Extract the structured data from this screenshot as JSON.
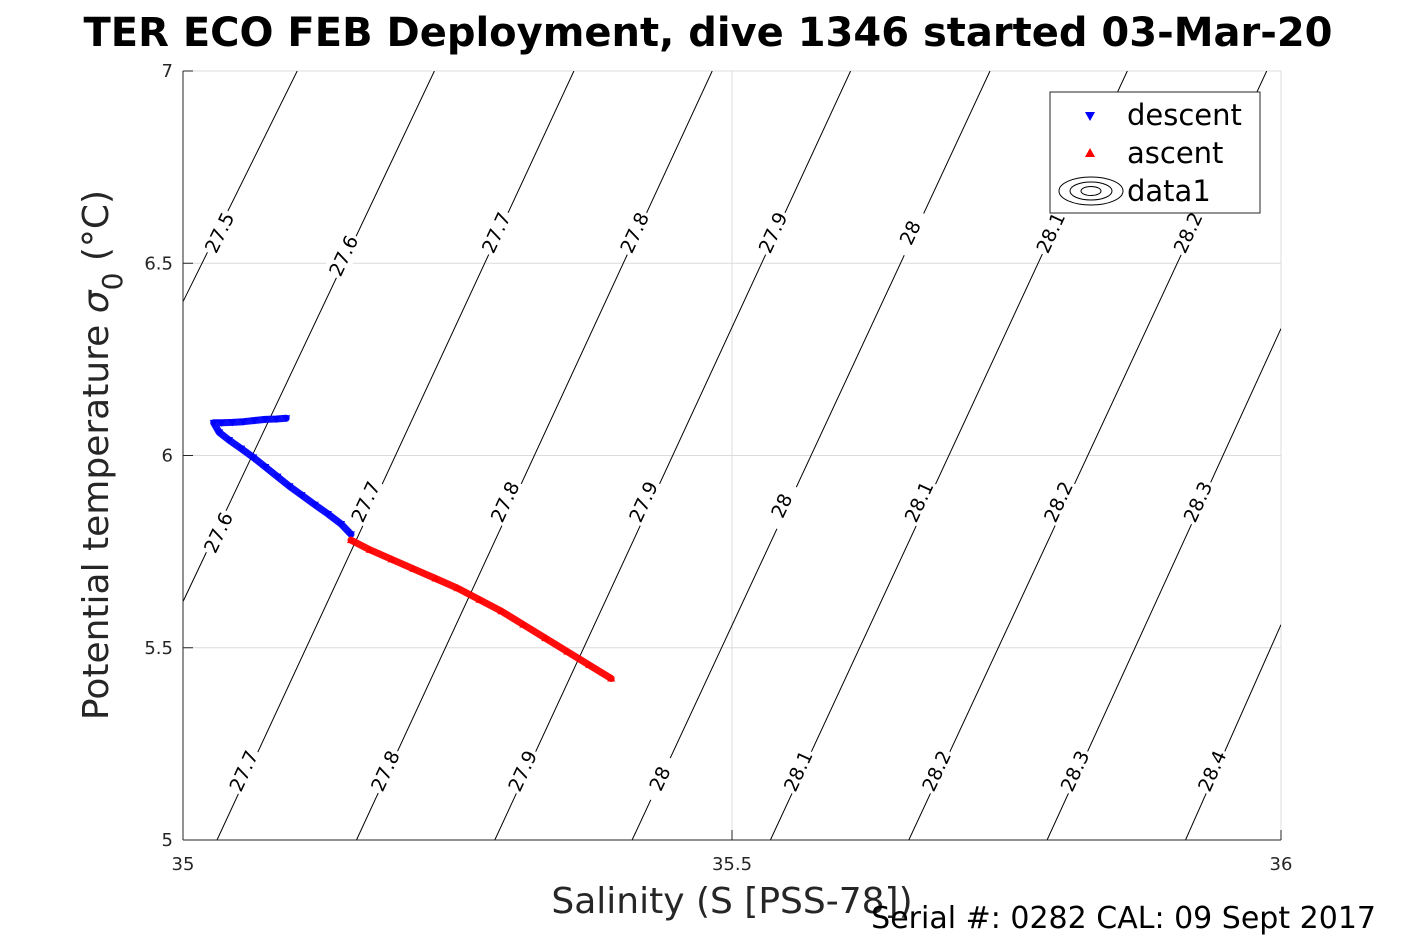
{
  "chart_data": {
    "type": "scatter",
    "title": "TER ECO FEB Deployment, dive 1346 started 03-Mar-20",
    "xlabel": "Salinity (S [PSS-78])",
    "ylabel_main": "Potential temperature ",
    "ylabel_sigma": "σ",
    "ylabel_sub": "0",
    "ylabel_unit": " (°C)",
    "xlim": [
      35,
      36
    ],
    "ylim": [
      5,
      7
    ],
    "xticks": [
      35,
      35.5,
      36
    ],
    "xtick_labels": [
      "35",
      "35.5",
      "36"
    ],
    "yticks": [
      5,
      5.5,
      6,
      6.5,
      7
    ],
    "ytick_labels": [
      "5",
      "5.5",
      "6",
      "6.5",
      "7"
    ],
    "grid": true,
    "legend_position": "top-right",
    "legend": [
      {
        "label": "descent",
        "marker": "triangle-down",
        "color": "#0000ff"
      },
      {
        "label": "ascent",
        "marker": "triangle-up",
        "color": "#ff0000"
      },
      {
        "label": "data1",
        "marker": "contour",
        "color": "#000000"
      }
    ],
    "density_contours": [
      {
        "value": "27.5",
        "lines": [
          [
            [
              35.0,
              6.4
            ],
            [
              35.104,
              7.0
            ]
          ]
        ],
        "labels": [
          {
            "text": "27.5",
            "x": 35.033,
            "y": 6.58
          }
        ]
      },
      {
        "value": "27.6",
        "lines": [
          [
            [
              35.0,
              5.62
            ],
            [
              35.229,
              7.0
            ]
          ]
        ],
        "labels": [
          {
            "text": "27.6",
            "x": 35.032,
            "y": 5.8
          },
          {
            "text": "27.6",
            "x": 35.146,
            "y": 6.52
          }
        ]
      },
      {
        "value": "27.7",
        "lines": [
          [
            [
              35.031,
              5.0
            ],
            [
              35.356,
              7.0
            ]
          ]
        ],
        "labels": [
          {
            "text": "27.7",
            "x": 35.055,
            "y": 5.18
          },
          {
            "text": "27.7",
            "x": 35.166,
            "y": 5.88
          },
          {
            "text": "27.7",
            "x": 35.285,
            "y": 6.58
          }
        ]
      },
      {
        "value": "27.8",
        "lines": [
          [
            [
              35.158,
              5.0
            ],
            [
              35.482,
              7.0
            ]
          ]
        ],
        "labels": [
          {
            "text": "27.8",
            "x": 35.184,
            "y": 5.18
          },
          {
            "text": "27.8",
            "x": 35.293,
            "y": 5.88
          },
          {
            "text": "27.8",
            "x": 35.411,
            "y": 6.58
          }
        ]
      },
      {
        "value": "27.9",
        "lines": [
          [
            [
              35.284,
              5.0
            ],
            [
              35.608,
              7.0
            ]
          ]
        ],
        "labels": [
          {
            "text": "27.9",
            "x": 35.309,
            "y": 5.18
          },
          {
            "text": "27.9",
            "x": 35.419,
            "y": 5.88
          },
          {
            "text": "27.9",
            "x": 35.537,
            "y": 6.58
          }
        ]
      },
      {
        "value": "28",
        "lines": [
          [
            [
              35.409,
              5.0
            ],
            [
              35.735,
              7.0
            ]
          ]
        ],
        "labels": [
          {
            "text": "28",
            "x": 35.434,
            "y": 5.16
          },
          {
            "text": "28",
            "x": 35.545,
            "y": 5.87
          },
          {
            "text": "28",
            "x": 35.662,
            "y": 6.58
          }
        ]
      },
      {
        "value": "28.1",
        "lines": [
          [
            [
              35.535,
              5.0
            ],
            [
              35.86,
              7.0
            ]
          ]
        ],
        "labels": [
          {
            "text": "28.1",
            "x": 35.56,
            "y": 5.18
          },
          {
            "text": "28.1",
            "x": 35.67,
            "y": 5.88
          },
          {
            "text": "28.1",
            "x": 35.79,
            "y": 6.58
          }
        ]
      },
      {
        "value": "28.2",
        "lines": [
          [
            [
              35.661,
              5.0
            ],
            [
              35.987,
              7.0
            ]
          ]
        ],
        "labels": [
          {
            "text": "28.2",
            "x": 35.686,
            "y": 5.18
          },
          {
            "text": "28.2",
            "x": 35.797,
            "y": 5.88
          },
          {
            "text": "28.2",
            "x": 35.915,
            "y": 6.58
          }
        ]
      },
      {
        "value": "28.3",
        "lines": [
          [
            [
              35.787,
              5.0
            ],
            [
              36.0,
              6.33
            ]
          ]
        ],
        "labels": [
          {
            "text": "28.3",
            "x": 35.812,
            "y": 5.18
          },
          {
            "text": "28.3",
            "x": 35.924,
            "y": 5.88
          }
        ]
      },
      {
        "value": "28.4",
        "lines": [
          [
            [
              35.913,
              5.0
            ],
            [
              36.0,
              5.56
            ]
          ]
        ],
        "labels": [
          {
            "text": "28.4",
            "x": 35.937,
            "y": 5.18
          }
        ]
      }
    ],
    "series": [
      {
        "name": "descent",
        "marker": "triangle-down",
        "color": "#0000ff",
        "x": [
          35.094,
          35.085,
          35.075,
          35.065,
          35.055,
          35.045,
          35.035,
          35.028,
          35.033,
          35.042,
          35.053,
          35.064,
          35.075,
          35.086,
          35.097,
          35.108,
          35.12,
          35.132,
          35.144,
          35.153
        ],
        "y": [
          6.097,
          6.095,
          6.094,
          6.091,
          6.088,
          6.086,
          6.085,
          6.085,
          6.06,
          6.04,
          6.018,
          5.995,
          5.97,
          5.945,
          5.92,
          5.897,
          5.872,
          5.848,
          5.822,
          5.795
        ]
      },
      {
        "name": "ascent",
        "marker": "triangle-up",
        "color": "#ff0000",
        "x": [
          35.153,
          35.17,
          35.19,
          35.21,
          35.23,
          35.25,
          35.27,
          35.29,
          35.31,
          35.33,
          35.35,
          35.37,
          35.39
        ],
        "y": [
          5.78,
          5.755,
          5.73,
          5.705,
          5.68,
          5.655,
          5.625,
          5.595,
          5.56,
          5.525,
          5.49,
          5.455,
          5.42
        ]
      }
    ]
  },
  "footer_text": "Serial #: 0282  CAL: 09 Sept 2017"
}
